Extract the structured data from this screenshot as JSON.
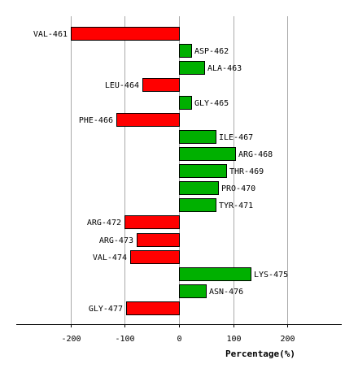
{
  "chart_data": {
    "type": "bar",
    "orientation": "horizontal",
    "categories": [
      "VAL-461",
      "ASP-462",
      "ALA-463",
      "LEU-464",
      "GLY-465",
      "PHE-466",
      "ILE-467",
      "ARG-468",
      "THR-469",
      "PRO-470",
      "TYR-471",
      "ARG-472",
      "ARG-473",
      "VAL-474",
      "LYS-475",
      "ASN-476",
      "GLY-477"
    ],
    "values": [
      -200,
      22,
      47,
      -68,
      23,
      -115,
      67,
      103,
      87,
      72,
      67,
      -100,
      -78,
      -90,
      132,
      50,
      -97
    ],
    "xlabel": "Percentage(%)",
    "ylabel": "",
    "xlim": [
      -300,
      300
    ],
    "xticks": [
      -200,
      -100,
      0,
      100,
      200
    ],
    "tick_labels": [
      "-200",
      "-100",
      "0",
      "100",
      "200"
    ],
    "grid": true,
    "colors": {
      "positive": "#00b000",
      "negative": "#ff0000",
      "grid": "#aaaaaa",
      "axis": "#000000",
      "text": "#000000"
    }
  }
}
